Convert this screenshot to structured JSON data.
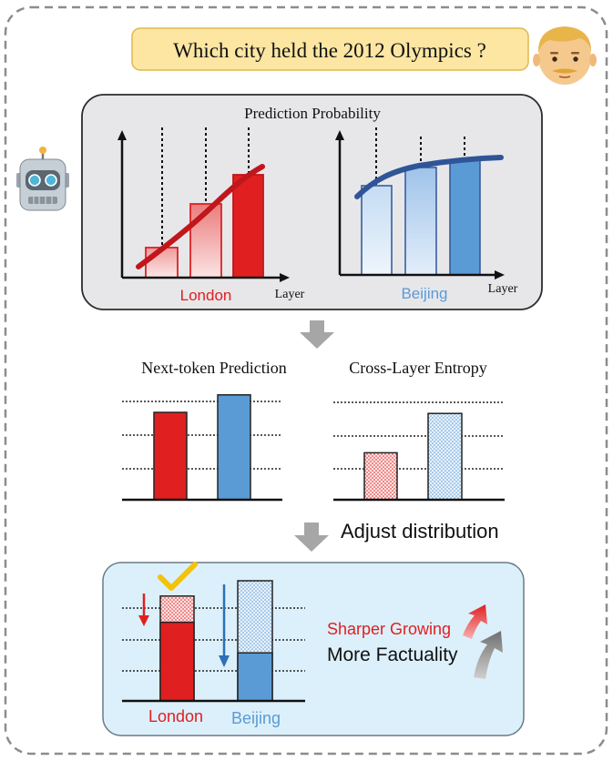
{
  "question": {
    "text": "Which city held the 2012 Olympics ?"
  },
  "avatars": {
    "user_icon": "man-face-emoji",
    "assistant_icon": "robot-face-emoji"
  },
  "colors": {
    "red": "#e02020",
    "blue": "#5b9bd5",
    "dark_blue": "#2f5597",
    "dark_red": "#c0171c",
    "question_bg": "#fce6a2",
    "question_border": "#e0b84c",
    "panel_gray": "#e7e7ea",
    "panel_blue": "#dcf0fb",
    "arrow_gray": "#a6a6a6"
  },
  "top_panel": {
    "title": "Prediction Probability",
    "left_chart": {
      "category": "London",
      "axis_label": "Layer",
      "bar_levels": [
        0.2,
        0.5,
        0.67
      ],
      "trend": "rising"
    },
    "right_chart": {
      "category": "Beijing",
      "axis_label": "Layer",
      "bar_levels": [
        0.61,
        0.72,
        0.77
      ],
      "trend": "saturating"
    }
  },
  "middle": {
    "left_chart": {
      "title": "Next-token Prediction",
      "series": [
        {
          "name": "London",
          "value": 0.8
        },
        {
          "name": "Beijing",
          "value": 0.96
        }
      ]
    },
    "right_chart": {
      "title": "Cross-Layer Entropy",
      "series": [
        {
          "name": "London",
          "value": 0.43
        },
        {
          "name": "Beijing",
          "value": 0.79
        }
      ]
    }
  },
  "step_label": "Adjust distribution",
  "bottom_panel": {
    "london_label": "London",
    "beijing_label": "Beijing",
    "london": {
      "before": 0.96,
      "after": 0.72
    },
    "beijing": {
      "before": 1.1,
      "after": 0.44
    },
    "check_icon": "check-mark-icon",
    "sharper_text": "Sharper Growing",
    "factual_text": "More Factuality"
  }
}
